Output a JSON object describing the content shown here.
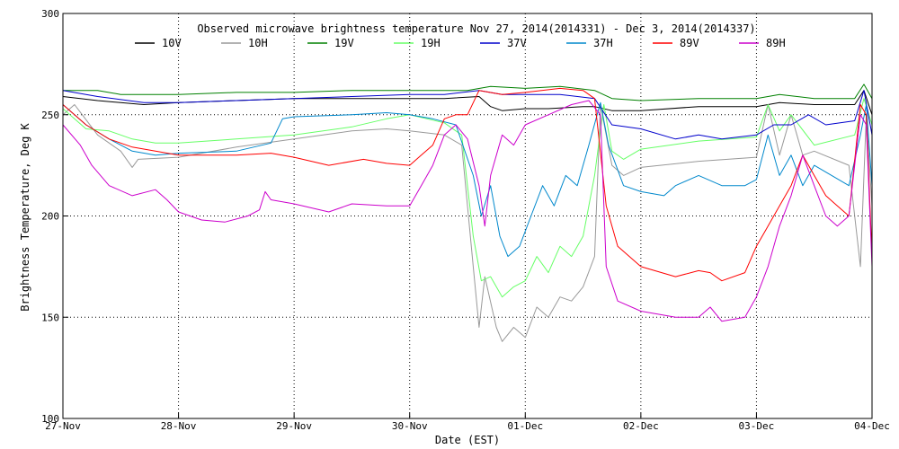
{
  "chart_data": {
    "type": "line",
    "title": "Observed microwave brightness temperature Nov 27, 2014(2014331) - Dec  3, 2014(2014337)",
    "xlabel": "Date (EST)",
    "ylabel": "Brightness Temperature, Deg K",
    "xlim": [
      0,
      7
    ],
    "ylim": [
      100,
      300
    ],
    "grid": true,
    "legend_position": "top",
    "x_ticks": [
      {
        "value": 0,
        "label": "27-Nov"
      },
      {
        "value": 1,
        "label": "28-Nov"
      },
      {
        "value": 2,
        "label": "29-Nov"
      },
      {
        "value": 3,
        "label": "30-Nov"
      },
      {
        "value": 4,
        "label": "01-Dec"
      },
      {
        "value": 5,
        "label": "02-Dec"
      },
      {
        "value": 6,
        "label": "03-Dec"
      },
      {
        "value": 7,
        "label": "04-Dec"
      }
    ],
    "y_ticks": [
      {
        "value": 100,
        "label": "100"
      },
      {
        "value": 150,
        "label": "150"
      },
      {
        "value": 200,
        "label": "200"
      },
      {
        "value": 250,
        "label": "250"
      },
      {
        "value": 300,
        "label": "300"
      }
    ],
    "series": [
      {
        "name": "10V",
        "color": "#000000",
        "points": [
          [
            0,
            259
          ],
          [
            0.3,
            257
          ],
          [
            0.7,
            255
          ],
          [
            1.0,
            256
          ],
          [
            1.5,
            257
          ],
          [
            2.0,
            258
          ],
          [
            2.5,
            258
          ],
          [
            3.0,
            258
          ],
          [
            3.3,
            258
          ],
          [
            3.6,
            259
          ],
          [
            3.7,
            254
          ],
          [
            3.8,
            252
          ],
          [
            4.0,
            253
          ],
          [
            4.2,
            253
          ],
          [
            4.5,
            254
          ],
          [
            4.6,
            254
          ],
          [
            4.75,
            252
          ],
          [
            5.0,
            252
          ],
          [
            5.5,
            254
          ],
          [
            6.0,
            254
          ],
          [
            6.2,
            256
          ],
          [
            6.5,
            255
          ],
          [
            6.85,
            255
          ],
          [
            6.93,
            262
          ],
          [
            7.0,
            250
          ]
        ]
      },
      {
        "name": "10H",
        "color": "#999999",
        "points": [
          [
            0,
            250
          ],
          [
            0.1,
            255
          ],
          [
            0.3,
            240
          ],
          [
            0.5,
            232
          ],
          [
            0.6,
            224
          ],
          [
            0.65,
            228
          ],
          [
            1.0,
            229
          ],
          [
            1.5,
            234
          ],
          [
            2.0,
            238
          ],
          [
            2.5,
            242
          ],
          [
            2.8,
            243
          ],
          [
            3.0,
            242
          ],
          [
            3.3,
            240
          ],
          [
            3.45,
            235
          ],
          [
            3.55,
            175
          ],
          [
            3.6,
            145
          ],
          [
            3.65,
            170
          ],
          [
            3.75,
            145
          ],
          [
            3.8,
            138
          ],
          [
            3.9,
            145
          ],
          [
            4.0,
            140
          ],
          [
            4.1,
            155
          ],
          [
            4.2,
            150
          ],
          [
            4.3,
            160
          ],
          [
            4.4,
            158
          ],
          [
            4.5,
            165
          ],
          [
            4.6,
            180
          ],
          [
            4.65,
            255
          ],
          [
            4.75,
            225
          ],
          [
            4.85,
            220
          ],
          [
            5.0,
            224
          ],
          [
            5.5,
            227
          ],
          [
            6.0,
            229
          ],
          [
            6.1,
            255
          ],
          [
            6.2,
            230
          ],
          [
            6.3,
            250
          ],
          [
            6.4,
            230
          ],
          [
            6.5,
            232
          ],
          [
            6.8,
            225
          ],
          [
            6.9,
            175
          ],
          [
            6.95,
            250
          ],
          [
            7.0,
            205
          ]
        ]
      },
      {
        "name": "19V",
        "color": "#008000",
        "points": [
          [
            0,
            262
          ],
          [
            0.3,
            262
          ],
          [
            0.5,
            260
          ],
          [
            1.0,
            260
          ],
          [
            1.5,
            261
          ],
          [
            2.0,
            261
          ],
          [
            2.5,
            262
          ],
          [
            3.0,
            262
          ],
          [
            3.5,
            262
          ],
          [
            3.7,
            264
          ],
          [
            4.0,
            263
          ],
          [
            4.3,
            264
          ],
          [
            4.6,
            262
          ],
          [
            4.75,
            258
          ],
          [
            5.0,
            257
          ],
          [
            5.5,
            258
          ],
          [
            6.0,
            258
          ],
          [
            6.2,
            260
          ],
          [
            6.5,
            258
          ],
          [
            6.85,
            258
          ],
          [
            6.93,
            265
          ],
          [
            7.0,
            258
          ]
        ]
      },
      {
        "name": "19H",
        "color": "#66ff66",
        "points": [
          [
            0,
            253
          ],
          [
            0.2,
            243
          ],
          [
            0.4,
            242
          ],
          [
            0.6,
            238
          ],
          [
            0.8,
            236
          ],
          [
            1.0,
            236
          ],
          [
            1.5,
            238
          ],
          [
            2.0,
            240
          ],
          [
            2.5,
            244
          ],
          [
            2.8,
            248
          ],
          [
            3.0,
            250
          ],
          [
            3.3,
            246
          ],
          [
            3.45,
            240
          ],
          [
            3.55,
            190
          ],
          [
            3.62,
            168
          ],
          [
            3.7,
            170
          ],
          [
            3.8,
            160
          ],
          [
            3.9,
            165
          ],
          [
            4.0,
            168
          ],
          [
            4.1,
            180
          ],
          [
            4.2,
            172
          ],
          [
            4.3,
            185
          ],
          [
            4.4,
            180
          ],
          [
            4.5,
            190
          ],
          [
            4.6,
            220
          ],
          [
            4.68,
            255
          ],
          [
            4.75,
            232
          ],
          [
            4.85,
            228
          ],
          [
            5.0,
            233
          ],
          [
            5.5,
            237
          ],
          [
            6.0,
            239
          ],
          [
            6.1,
            255
          ],
          [
            6.2,
            242
          ],
          [
            6.3,
            250
          ],
          [
            6.5,
            235
          ],
          [
            6.85,
            240
          ],
          [
            6.93,
            258
          ],
          [
            7.0,
            245
          ]
        ]
      },
      {
        "name": "37V",
        "color": "#0000cc",
        "points": [
          [
            0,
            262
          ],
          [
            0.3,
            259
          ],
          [
            0.7,
            256
          ],
          [
            1.0,
            256
          ],
          [
            1.5,
            257
          ],
          [
            2.0,
            258
          ],
          [
            2.5,
            259
          ],
          [
            3.0,
            260
          ],
          [
            3.3,
            260
          ],
          [
            3.6,
            262
          ],
          [
            3.8,
            260
          ],
          [
            4.0,
            260
          ],
          [
            4.3,
            260
          ],
          [
            4.6,
            258
          ],
          [
            4.75,
            245
          ],
          [
            5.0,
            243
          ],
          [
            5.3,
            238
          ],
          [
            5.5,
            240
          ],
          [
            5.7,
            238
          ],
          [
            6.0,
            240
          ],
          [
            6.15,
            245
          ],
          [
            6.3,
            245
          ],
          [
            6.45,
            250
          ],
          [
            6.6,
            245
          ],
          [
            6.85,
            247
          ],
          [
            6.93,
            262
          ],
          [
            7.0,
            240
          ]
        ]
      },
      {
        "name": "37H",
        "color": "#0088cc",
        "points": [
          [
            0,
            255
          ],
          [
            0.2,
            245
          ],
          [
            0.4,
            238
          ],
          [
            0.6,
            232
          ],
          [
            0.8,
            230
          ],
          [
            1.0,
            231
          ],
          [
            1.5,
            232
          ],
          [
            1.8,
            236
          ],
          [
            1.9,
            248
          ],
          [
            2.0,
            249
          ],
          [
            2.5,
            250
          ],
          [
            2.8,
            251
          ],
          [
            3.0,
            250
          ],
          [
            3.2,
            248
          ],
          [
            3.4,
            245
          ],
          [
            3.55,
            220
          ],
          [
            3.62,
            200
          ],
          [
            3.7,
            215
          ],
          [
            3.78,
            190
          ],
          [
            3.85,
            180
          ],
          [
            3.95,
            185
          ],
          [
            4.05,
            200
          ],
          [
            4.15,
            215
          ],
          [
            4.25,
            205
          ],
          [
            4.35,
            220
          ],
          [
            4.45,
            215
          ],
          [
            4.55,
            235
          ],
          [
            4.65,
            256
          ],
          [
            4.72,
            235
          ],
          [
            4.85,
            215
          ],
          [
            5.0,
            212
          ],
          [
            5.2,
            210
          ],
          [
            5.3,
            215
          ],
          [
            5.5,
            220
          ],
          [
            5.7,
            215
          ],
          [
            5.9,
            215
          ],
          [
            6.0,
            218
          ],
          [
            6.1,
            240
          ],
          [
            6.2,
            220
          ],
          [
            6.3,
            230
          ],
          [
            6.4,
            215
          ],
          [
            6.5,
            225
          ],
          [
            6.8,
            215
          ],
          [
            6.9,
            240
          ],
          [
            6.95,
            255
          ],
          [
            7.0,
            215
          ]
        ]
      },
      {
        "name": "89V",
        "color": "#ff0000",
        "points": [
          [
            0,
            255
          ],
          [
            0.2,
            245
          ],
          [
            0.4,
            238
          ],
          [
            0.6,
            234
          ],
          [
            0.8,
            232
          ],
          [
            1.0,
            230
          ],
          [
            1.5,
            230
          ],
          [
            1.8,
            231
          ],
          [
            2.0,
            229
          ],
          [
            2.3,
            225
          ],
          [
            2.6,
            228
          ],
          [
            2.8,
            226
          ],
          [
            3.0,
            225
          ],
          [
            3.1,
            230
          ],
          [
            3.2,
            235
          ],
          [
            3.3,
            248
          ],
          [
            3.4,
            250
          ],
          [
            3.5,
            250
          ],
          [
            3.6,
            262
          ],
          [
            3.8,
            260
          ],
          [
            4.0,
            261
          ],
          [
            4.3,
            263
          ],
          [
            4.5,
            262
          ],
          [
            4.6,
            258
          ],
          [
            4.7,
            205
          ],
          [
            4.8,
            185
          ],
          [
            5.0,
            175
          ],
          [
            5.3,
            170
          ],
          [
            5.5,
            173
          ],
          [
            5.6,
            172
          ],
          [
            5.7,
            168
          ],
          [
            5.9,
            172
          ],
          [
            6.0,
            185
          ],
          [
            6.1,
            195
          ],
          [
            6.2,
            205
          ],
          [
            6.3,
            215
          ],
          [
            6.4,
            230
          ],
          [
            6.5,
            220
          ],
          [
            6.6,
            210
          ],
          [
            6.7,
            205
          ],
          [
            6.8,
            200
          ],
          [
            6.9,
            255
          ],
          [
            6.95,
            250
          ],
          [
            7.0,
            180
          ]
        ]
      },
      {
        "name": "89H",
        "color": "#cc00cc",
        "points": [
          [
            0,
            245
          ],
          [
            0.15,
            235
          ],
          [
            0.25,
            225
          ],
          [
            0.4,
            215
          ],
          [
            0.6,
            210
          ],
          [
            0.8,
            213
          ],
          [
            0.9,
            208
          ],
          [
            1.0,
            202
          ],
          [
            1.2,
            198
          ],
          [
            1.4,
            197
          ],
          [
            1.6,
            200
          ],
          [
            1.7,
            203
          ],
          [
            1.75,
            212
          ],
          [
            1.8,
            208
          ],
          [
            2.0,
            206
          ],
          [
            2.3,
            202
          ],
          [
            2.5,
            206
          ],
          [
            2.8,
            205
          ],
          [
            3.0,
            205
          ],
          [
            3.1,
            215
          ],
          [
            3.2,
            225
          ],
          [
            3.3,
            240
          ],
          [
            3.4,
            245
          ],
          [
            3.5,
            238
          ],
          [
            3.6,
            215
          ],
          [
            3.65,
            195
          ],
          [
            3.7,
            220
          ],
          [
            3.8,
            240
          ],
          [
            3.9,
            235
          ],
          [
            4.0,
            245
          ],
          [
            4.2,
            250
          ],
          [
            4.4,
            255
          ],
          [
            4.55,
            257
          ],
          [
            4.65,
            250
          ],
          [
            4.7,
            175
          ],
          [
            4.8,
            158
          ],
          [
            5.0,
            153
          ],
          [
            5.3,
            150
          ],
          [
            5.5,
            150
          ],
          [
            5.6,
            155
          ],
          [
            5.7,
            148
          ],
          [
            5.9,
            150
          ],
          [
            6.0,
            160
          ],
          [
            6.1,
            175
          ],
          [
            6.2,
            195
          ],
          [
            6.3,
            210
          ],
          [
            6.4,
            230
          ],
          [
            6.5,
            215
          ],
          [
            6.6,
            200
          ],
          [
            6.7,
            195
          ],
          [
            6.8,
            200
          ],
          [
            6.9,
            250
          ],
          [
            6.95,
            245
          ],
          [
            7.0,
            175
          ]
        ]
      }
    ]
  }
}
